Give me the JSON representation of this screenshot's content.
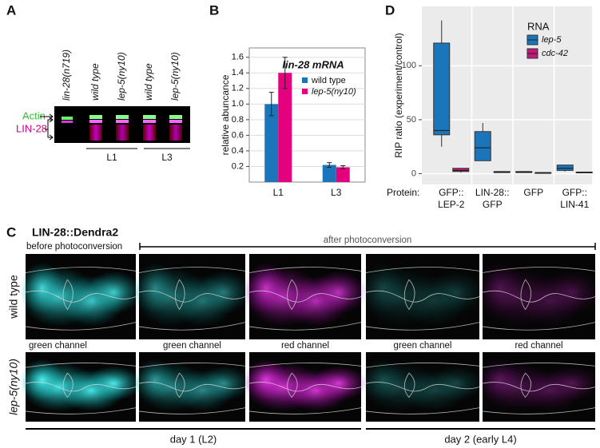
{
  "panels": {
    "a": "A",
    "b": "B",
    "c": "C",
    "d": "D"
  },
  "gel": {
    "lanes": [
      "lin-28(n719)",
      "wild type",
      "lep-5(ny10)",
      "wild type",
      "lep-5(ny10)"
    ],
    "bands": [
      "Actin",
      "LIN-28"
    ],
    "stages": [
      "L1",
      "L3"
    ]
  },
  "chart_data": [
    {
      "type": "bar",
      "title": "lin-28 mRNA",
      "y_label": "relative abuncance",
      "categories": [
        "L1",
        "L3"
      ],
      "series": [
        {
          "name": "wild type",
          "color": "#1b75bb",
          "values": [
            1.0,
            0.22
          ],
          "errors": [
            0.15,
            0.03
          ]
        },
        {
          "name": "lep-5(ny10)",
          "color": "#e5007d",
          "values": [
            1.4,
            0.19
          ],
          "errors": [
            0.2,
            0.02
          ]
        }
      ],
      "ylim": [
        0,
        1.72
      ],
      "yticks": [
        0.2,
        0.4,
        0.6,
        0.8,
        {
          "value": 1.0,
          "label": "1.0"
        },
        1.2,
        1.4,
        1.6
      ],
      "grid": true
    },
    {
      "type": "box",
      "y_label": "RIP ratio (experiment/control)",
      "x_label": "Protein:",
      "categories": [
        [
          "GFP::",
          "LEP-2"
        ],
        [
          "LIN-28::",
          "GFP"
        ],
        [
          "GFP"
        ],
        [
          "GFP::",
          "LIN-41"
        ]
      ],
      "legend_title": "RNA",
      "series": [
        {
          "name": "lep-5",
          "color": "#1b75bb",
          "values": [
            [
              25,
              36,
              40,
              121,
              142
            ],
            [
              12,
              12,
              24,
              39,
              47
            ],
            [
              1,
              1,
              1.5,
              2,
              2
            ],
            [
              2,
              3,
              5,
              8,
              8
            ]
          ]
        },
        {
          "name": "cdc-42",
          "color": "#c2187a",
          "values": [
            [
              1,
              2,
              3,
              5,
              5
            ],
            [
              1,
              1,
              1.5,
              2,
              2
            ],
            [
              0.5,
              0.5,
              1,
              1,
              1
            ],
            [
              1,
              1,
              1,
              1.5,
              1.5
            ]
          ]
        }
      ],
      "ylim": [
        -10,
        155
      ],
      "yticks": [
        0,
        50,
        100
      ],
      "grid": true
    }
  ],
  "micrographs": {
    "title": "LIN-28::Dendra2",
    "before": "before photoconversion",
    "after": "after photoconversion",
    "rows": [
      "wild type",
      "lep-5(ny10)"
    ],
    "channels": [
      "green channel",
      "green channel",
      "red channel",
      "green channel",
      "red channel"
    ],
    "days": [
      "day 1 (L2)",
      "day 2 (early L4)"
    ]
  }
}
